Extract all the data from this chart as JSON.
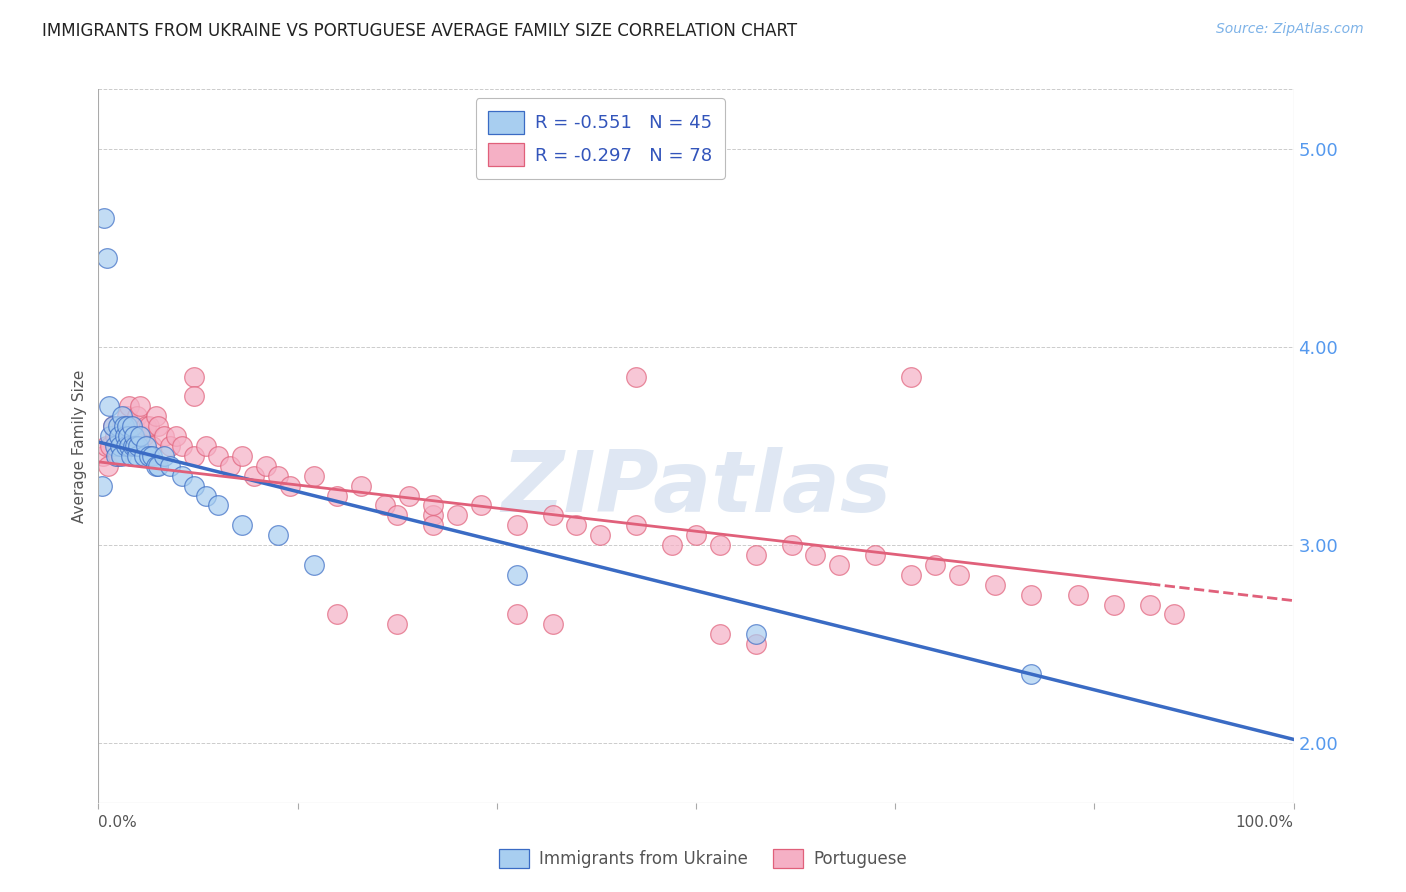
{
  "title": "IMMIGRANTS FROM UKRAINE VS PORTUGUESE AVERAGE FAMILY SIZE CORRELATION CHART",
  "source": "Source: ZipAtlas.com",
  "ylabel": "Average Family Size",
  "watermark": "ZIPatlas",
  "legend_label1": "Immigrants from Ukraine",
  "legend_label2": "Portuguese",
  "legend_R1": "-0.551",
  "legend_N1": "45",
  "legend_R2": "-0.297",
  "legend_N2": "78",
  "yticks": [
    2.0,
    3.0,
    4.0,
    5.0
  ],
  "ylim": [
    1.7,
    5.3
  ],
  "xlim": [
    0.0,
    1.0
  ],
  "color_ukraine": "#a8cef0",
  "color_portuguese": "#f5b0c5",
  "line_ukraine": "#3a6bc4",
  "line_portuguese": "#e0607a",
  "ukraine_x": [
    0.003,
    0.005,
    0.007,
    0.009,
    0.01,
    0.012,
    0.014,
    0.015,
    0.016,
    0.017,
    0.018,
    0.019,
    0.02,
    0.021,
    0.022,
    0.023,
    0.024,
    0.025,
    0.026,
    0.027,
    0.028,
    0.029,
    0.03,
    0.031,
    0.032,
    0.033,
    0.035,
    0.038,
    0.04,
    0.042,
    0.045,
    0.048,
    0.05,
    0.055,
    0.06,
    0.07,
    0.08,
    0.09,
    0.1,
    0.12,
    0.15,
    0.18,
    0.35,
    0.55,
    0.78
  ],
  "ukraine_y": [
    3.3,
    4.65,
    4.45,
    3.7,
    3.55,
    3.6,
    3.5,
    3.45,
    3.6,
    3.55,
    3.5,
    3.45,
    3.65,
    3.6,
    3.55,
    3.5,
    3.6,
    3.55,
    3.5,
    3.45,
    3.6,
    3.5,
    3.55,
    3.5,
    3.45,
    3.5,
    3.55,
    3.45,
    3.5,
    3.45,
    3.45,
    3.4,
    3.4,
    3.45,
    3.4,
    3.35,
    3.3,
    3.25,
    3.2,
    3.1,
    3.05,
    2.9,
    2.85,
    2.55,
    2.35
  ],
  "portuguese_x": [
    0.004,
    0.006,
    0.008,
    0.01,
    0.012,
    0.014,
    0.016,
    0.018,
    0.02,
    0.022,
    0.024,
    0.026,
    0.028,
    0.03,
    0.032,
    0.035,
    0.038,
    0.04,
    0.042,
    0.045,
    0.048,
    0.05,
    0.055,
    0.06,
    0.065,
    0.07,
    0.08,
    0.09,
    0.1,
    0.11,
    0.12,
    0.13,
    0.14,
    0.15,
    0.16,
    0.18,
    0.2,
    0.22,
    0.24,
    0.26,
    0.28,
    0.3,
    0.32,
    0.35,
    0.38,
    0.4,
    0.42,
    0.45,
    0.48,
    0.5,
    0.52,
    0.55,
    0.58,
    0.6,
    0.62,
    0.65,
    0.68,
    0.7,
    0.72,
    0.75,
    0.78,
    0.82,
    0.85,
    0.88,
    0.9,
    0.08,
    0.08,
    0.25,
    0.28,
    0.28,
    0.35,
    0.38,
    0.52,
    0.55,
    0.45,
    0.68,
    0.2,
    0.25
  ],
  "portuguese_y": [
    3.45,
    3.5,
    3.4,
    3.5,
    3.6,
    3.55,
    3.45,
    3.55,
    3.6,
    3.55,
    3.65,
    3.7,
    3.55,
    3.6,
    3.65,
    3.7,
    3.55,
    3.6,
    3.6,
    3.5,
    3.65,
    3.6,
    3.55,
    3.5,
    3.55,
    3.5,
    3.45,
    3.5,
    3.45,
    3.4,
    3.45,
    3.35,
    3.4,
    3.35,
    3.3,
    3.35,
    3.25,
    3.3,
    3.2,
    3.25,
    3.15,
    3.15,
    3.2,
    3.1,
    3.15,
    3.1,
    3.05,
    3.1,
    3.0,
    3.05,
    3.0,
    2.95,
    3.0,
    2.95,
    2.9,
    2.95,
    2.85,
    2.9,
    2.85,
    2.8,
    2.75,
    2.75,
    2.7,
    2.7,
    2.65,
    3.85,
    3.75,
    3.15,
    3.1,
    3.2,
    2.65,
    2.6,
    2.55,
    2.5,
    3.85,
    3.85,
    2.65,
    2.6
  ],
  "xtick_positions": [
    0.0,
    0.1667,
    0.3333,
    0.5,
    0.6667,
    0.8333,
    1.0
  ],
  "background": "#ffffff",
  "grid_color": "#cccccc",
  "spine_color": "#aaaaaa",
  "label_color": "#555555",
  "right_tick_color": "#5599ee"
}
